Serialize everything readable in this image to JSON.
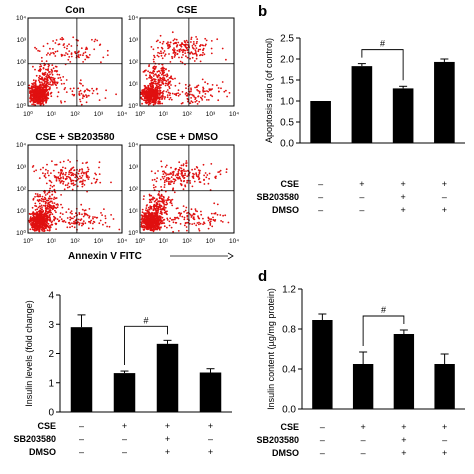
{
  "panel_letters": {
    "b": "b",
    "d": "d"
  },
  "flow": {
    "plots": [
      {
        "title": "Con"
      },
      {
        "title": "CSE"
      },
      {
        "title": "CSE + SB203580"
      },
      {
        "title": "CSE + DMSO"
      }
    ],
    "xlabel": "Annexin V FITC",
    "tick_labels": [
      "10⁰",
      "10¹",
      "10²",
      "10³",
      "10⁴"
    ],
    "dot_color": "#e01010"
  },
  "treatment_table": {
    "rows": [
      {
        "label": "CSE",
        "signs": [
          "–",
          "+",
          "+",
          "+"
        ]
      },
      {
        "label": "SB203580",
        "signs": [
          "–",
          "–",
          "+",
          "–"
        ]
      },
      {
        "label": "DMSO",
        "signs": [
          "–",
          "–",
          "+",
          "+"
        ]
      }
    ]
  },
  "chart_data": [
    {
      "id": "b",
      "type": "bar",
      "ylabel": "Apoptosis ratio (of control)",
      "ylim": [
        0,
        2.5
      ],
      "yticks": [
        "0.0",
        "0.5",
        "1.0",
        "1.5",
        "2.0",
        "2.5"
      ],
      "values": [
        1.0,
        1.83,
        1.3,
        1.93
      ],
      "errors": [
        0,
        0.06,
        0.05,
        0.07
      ],
      "significance": {
        "from": 1,
        "to": 2,
        "label": "#"
      },
      "bar_color": "#000000"
    },
    {
      "id": "c",
      "type": "bar",
      "ylabel": "Insulin levels (fold change)",
      "ylim": [
        0,
        4
      ],
      "yticks": [
        "0",
        "1",
        "2",
        "3",
        "4"
      ],
      "values": [
        2.9,
        1.33,
        2.33,
        1.35
      ],
      "errors": [
        0.42,
        0.07,
        0.12,
        0.13
      ],
      "significance": {
        "from": 1,
        "to": 2,
        "label": "#"
      },
      "bar_color": "#000000"
    },
    {
      "id": "d",
      "type": "bar",
      "ylabel": "Insulin content (µg/mg protein)",
      "ylim": [
        0,
        1.2
      ],
      "yticks": [
        "0.0",
        "0.4",
        "0.8",
        "1.2"
      ],
      "values": [
        0.89,
        0.45,
        0.75,
        0.45
      ],
      "errors": [
        0.06,
        0.12,
        0.04,
        0.1
      ],
      "significance": {
        "from": 1,
        "to": 2,
        "label": "#"
      },
      "bar_color": "#000000"
    }
  ]
}
